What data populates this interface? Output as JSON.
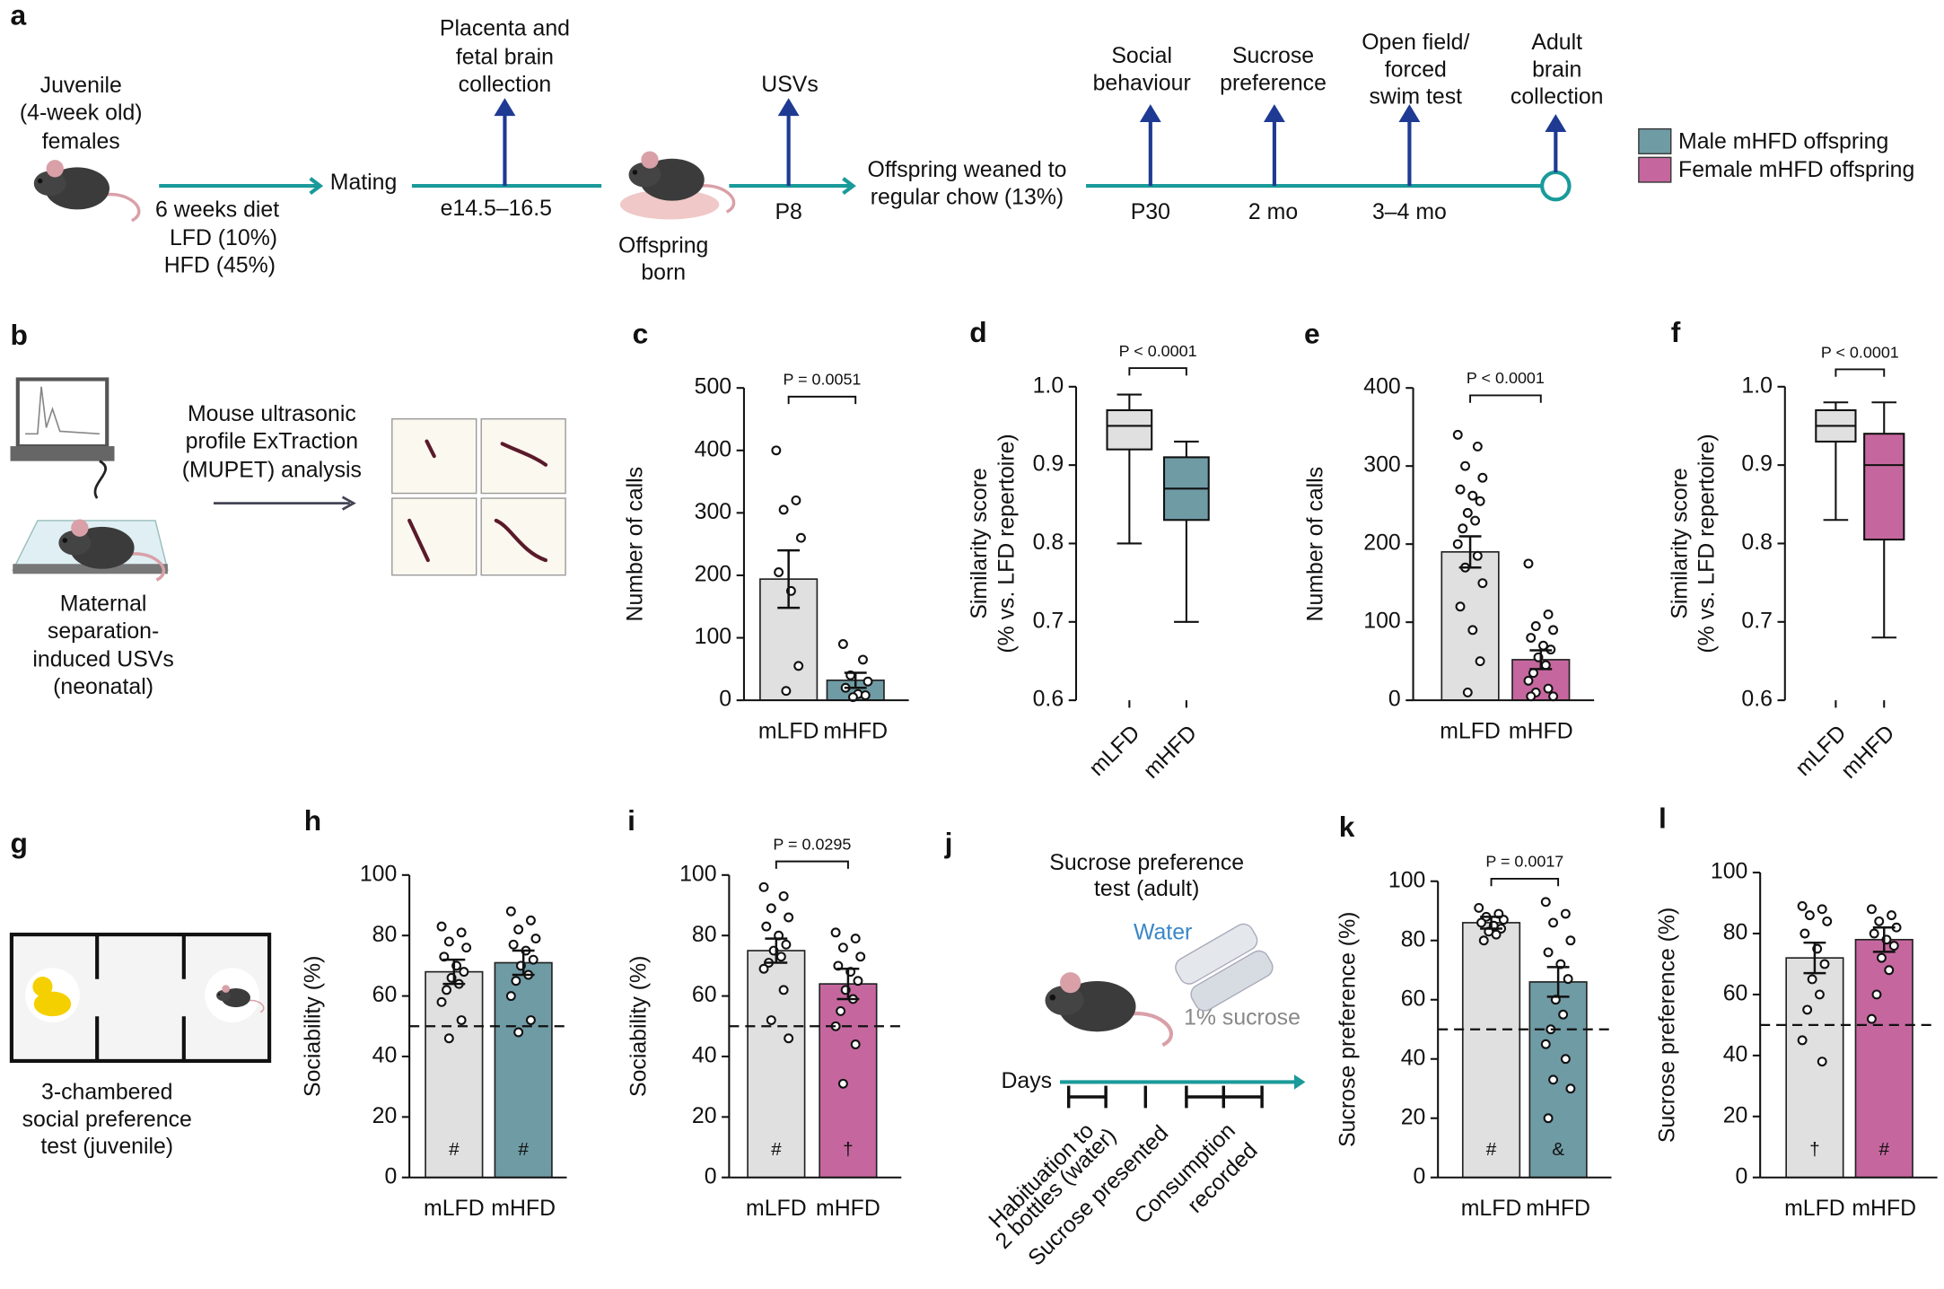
{
  "legend": [
    {
      "label": "Male mHFD offspring",
      "color": "#6f9ba5"
    },
    {
      "label": "Female mHFD offspring",
      "color": "#c5679e"
    }
  ],
  "timeline": {
    "panel": "a",
    "start": [
      "Juvenile",
      "(4-week old)",
      "females"
    ],
    "diet": [
      "6 weeks diet",
      "LFD (10%)",
      "HFD (45%)"
    ],
    "mating": "Mating",
    "placenta": [
      "Placenta and",
      "fetal brain",
      "collection"
    ],
    "placenta_time": "e14.5–16.5",
    "born": [
      "Offspring",
      "born"
    ],
    "usvs": "USVs",
    "usvs_time": "P8",
    "weaned": [
      "Offspring weaned to",
      "regular chow (13%)"
    ],
    "social": [
      "Social",
      "behaviour"
    ],
    "social_time": "P30",
    "sucrose": [
      "Sucrose",
      "preference"
    ],
    "sucrose_time": "2 mo",
    "openfield": [
      "Open field/",
      "forced",
      "swim test"
    ],
    "openfield_time": "3–4 mo",
    "adult": [
      "Adult",
      "brain",
      "collection"
    ]
  },
  "panel_b": {
    "panel": "b",
    "analysis": [
      "Mouse ultrasonic",
      "profile ExTraction",
      "(MUPET) analysis"
    ],
    "recording": [
      "Maternal",
      "separation-",
      "induced USVs",
      "(neonatal)"
    ]
  },
  "panel_g": {
    "panel": "g",
    "caption": [
      "3-chambered",
      "social preference",
      "test (juvenile)"
    ]
  },
  "panel_j": {
    "panel": "j",
    "title": [
      "Sucrose preference",
      "test (adult)"
    ],
    "water": "Water",
    "sucrose": "1% sucrose",
    "days": "Days",
    "habituation": [
      "Habituation to",
      "2 bottles (water)"
    ],
    "presented": "Sucrose presented",
    "consumption": [
      "Consumption",
      "recorded"
    ]
  },
  "chart_data": [
    {
      "type": "bar",
      "panel": "c",
      "y_label": "Number of calls",
      "categories": [
        "mLFD",
        "mHFD"
      ],
      "values": [
        194,
        32
      ],
      "errors": [
        46,
        12
      ],
      "colors": [
        "#e0e0e0",
        "#6f9ba5"
      ],
      "points": [
        [
          400,
          320,
          305,
          260,
          205,
          175,
          55,
          15
        ],
        [
          90,
          65,
          40,
          30,
          20,
          10,
          8,
          5
        ]
      ],
      "ylim": [
        0,
        500
      ],
      "yticks": [
        0,
        100,
        200,
        300,
        400,
        500
      ],
      "annotation": "P = 0.0051"
    },
    {
      "type": "box",
      "panel": "d",
      "y_label": [
        "Similarity score",
        "(% vs. LFD repertoire)"
      ],
      "categories": [
        "mLFD",
        "mHFD"
      ],
      "stats": [
        {
          "min": 0.8,
          "q1": 0.92,
          "median": 0.95,
          "q3": 0.97,
          "max": 0.99
        },
        {
          "min": 0.7,
          "q1": 0.83,
          "median": 0.87,
          "q3": 0.91,
          "max": 0.93
        }
      ],
      "colors": [
        "#e0e0e0",
        "#6f9ba5"
      ],
      "ylim": [
        0.6,
        1.0
      ],
      "yticks": [
        0.6,
        0.7,
        0.8,
        0.9,
        {
          "value": 1,
          "label": "1.0"
        }
      ],
      "annotation": "P < 0.0001"
    },
    {
      "type": "bar",
      "panel": "e",
      "y_label": "Number of calls",
      "categories": [
        "mLFD",
        "mHFD"
      ],
      "values": [
        190,
        52
      ],
      "errors": [
        20,
        12
      ],
      "colors": [
        "#e0e0e0",
        "#c5679e"
      ],
      "points": [
        [
          340,
          325,
          300,
          285,
          270,
          262,
          255,
          240,
          230,
          220,
          200,
          185,
          170,
          150,
          120,
          90,
          50,
          10
        ],
        [
          175,
          110,
          95,
          90,
          80,
          70,
          65,
          55,
          45,
          35,
          25,
          15,
          10,
          5,
          5
        ]
      ],
      "ylim": [
        0,
        400
      ],
      "yticks": [
        0,
        100,
        200,
        300,
        400
      ],
      "annotation": "P < 0.0001"
    },
    {
      "type": "box",
      "panel": "f",
      "y_label": [
        "Similarity score",
        "(% vs. LFD repertoire)"
      ],
      "categories": [
        "mLFD",
        "mHFD"
      ],
      "stats": [
        {
          "min": 0.83,
          "q1": 0.93,
          "median": 0.95,
          "q3": 0.97,
          "max": 0.98
        },
        {
          "min": 0.68,
          "q1": 0.805,
          "median": 0.9,
          "q3": 0.94,
          "max": 0.98
        }
      ],
      "colors": [
        "#e0e0e0",
        "#c5679e"
      ],
      "ylim": [
        0.6,
        1.0
      ],
      "yticks": [
        0.6,
        0.7,
        0.8,
        0.9,
        {
          "value": 1,
          "label": "1.0"
        }
      ],
      "annotation": "P < 0.0001"
    },
    {
      "type": "bar",
      "panel": "h",
      "y_label": "Sociability (%)",
      "categories": [
        "mLFD",
        "mHFD"
      ],
      "values": [
        68,
        71
      ],
      "errors": [
        4,
        4
      ],
      "colors": [
        "#e0e0e0",
        "#6f9ba5"
      ],
      "points": [
        [
          83,
          81,
          78,
          76,
          73,
          70,
          68,
          66,
          64,
          62,
          58,
          52,
          46
        ],
        [
          88,
          85,
          82,
          79,
          77,
          75,
          72,
          70,
          67,
          65,
          60,
          52,
          48
        ]
      ],
      "ylim": [
        0,
        100
      ],
      "yticks": [
        0,
        20,
        40,
        60,
        80,
        100
      ],
      "reference_line": 50,
      "bar_labels": [
        "#",
        "#"
      ]
    },
    {
      "type": "bar",
      "panel": "i",
      "y_label": "Sociability (%)",
      "categories": [
        "mLFD",
        "mHFD"
      ],
      "values": [
        75,
        64
      ],
      "errors": [
        4,
        5
      ],
      "colors": [
        "#e0e0e0",
        "#c5679e"
      ],
      "points": [
        [
          96,
          93,
          89,
          86,
          83,
          80,
          77,
          75,
          73,
          71,
          69,
          62,
          52,
          46
        ],
        [
          81,
          79,
          76,
          73,
          70,
          68,
          65,
          62,
          59,
          55,
          50,
          44,
          31
        ]
      ],
      "ylim": [
        0,
        100
      ],
      "yticks": [
        0,
        20,
        40,
        60,
        80,
        100
      ],
      "reference_line": 50,
      "bar_labels": [
        "#",
        "†"
      ],
      "annotation": "P = 0.0295"
    },
    {
      "type": "bar",
      "panel": "k",
      "y_label": "Sucrose preference (%)",
      "categories": [
        "mLFD",
        "mHFD"
      ],
      "values": [
        86,
        66
      ],
      "errors": [
        2,
        5
      ],
      "colors": [
        "#e0e0e0",
        "#6f9ba5"
      ],
      "points": [
        [
          91,
          89,
          88,
          87,
          86,
          85,
          84,
          83,
          82,
          80
        ],
        [
          93,
          89,
          86,
          80,
          76,
          72,
          67,
          60,
          55,
          50,
          45,
          40,
          33,
          30,
          20
        ]
      ],
      "ylim": [
        0,
        100
      ],
      "yticks": [
        0,
        20,
        40,
        60,
        80,
        100
      ],
      "reference_line": 50,
      "bar_labels": [
        "#",
        "&"
      ],
      "annotation": "P = 0.0017"
    },
    {
      "type": "bar",
      "panel": "l",
      "y_label": "Sucrose preference (%)",
      "categories": [
        "mLFD",
        "mHFD"
      ],
      "values": [
        72,
        78
      ],
      "errors": [
        5,
        4
      ],
      "colors": [
        "#e0e0e0",
        "#c5679e"
      ],
      "points": [
        [
          89,
          88,
          86,
          84,
          80,
          75,
          70,
          65,
          60,
          55,
          45,
          38
        ],
        [
          88,
          86,
          84,
          82,
          80,
          78,
          76,
          72,
          68,
          60,
          52
        ]
      ],
      "ylim": [
        0,
        100
      ],
      "yticks": [
        0,
        20,
        40,
        60,
        80,
        100
      ],
      "reference_line": 50,
      "bar_labels": [
        "†",
        "#"
      ]
    }
  ]
}
